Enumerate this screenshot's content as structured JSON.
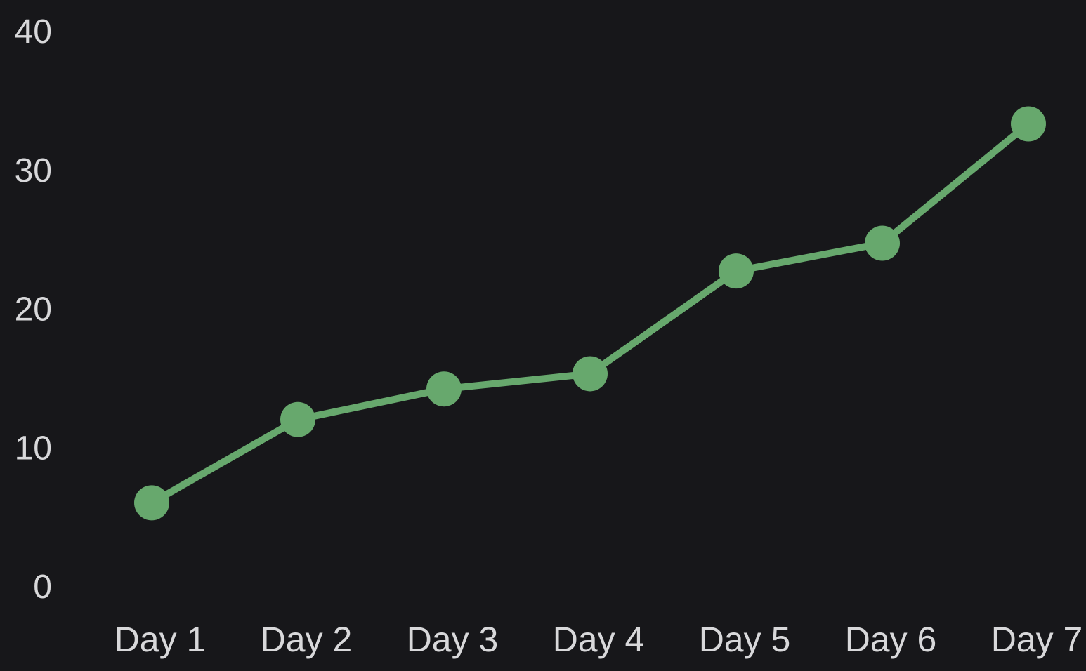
{
  "chart_data": {
    "type": "line",
    "categories": [
      "Day 1",
      "Day 2",
      "Day 3",
      "Day 4",
      "Day 5",
      "Day 6",
      "Day 7"
    ],
    "series": [
      {
        "values": [
          6.0,
          12.0,
          14.2,
          15.3,
          22.7,
          24.7,
          33.3
        ]
      }
    ],
    "yticks": [
      "0",
      "10",
      "20",
      "30",
      "40"
    ],
    "ylim": [
      0,
      40
    ],
    "grid": false,
    "colors": {
      "background": "#17171a",
      "line": "#67a86d",
      "marker": "#67a86d",
      "tick_text": "#d8d8da"
    }
  }
}
